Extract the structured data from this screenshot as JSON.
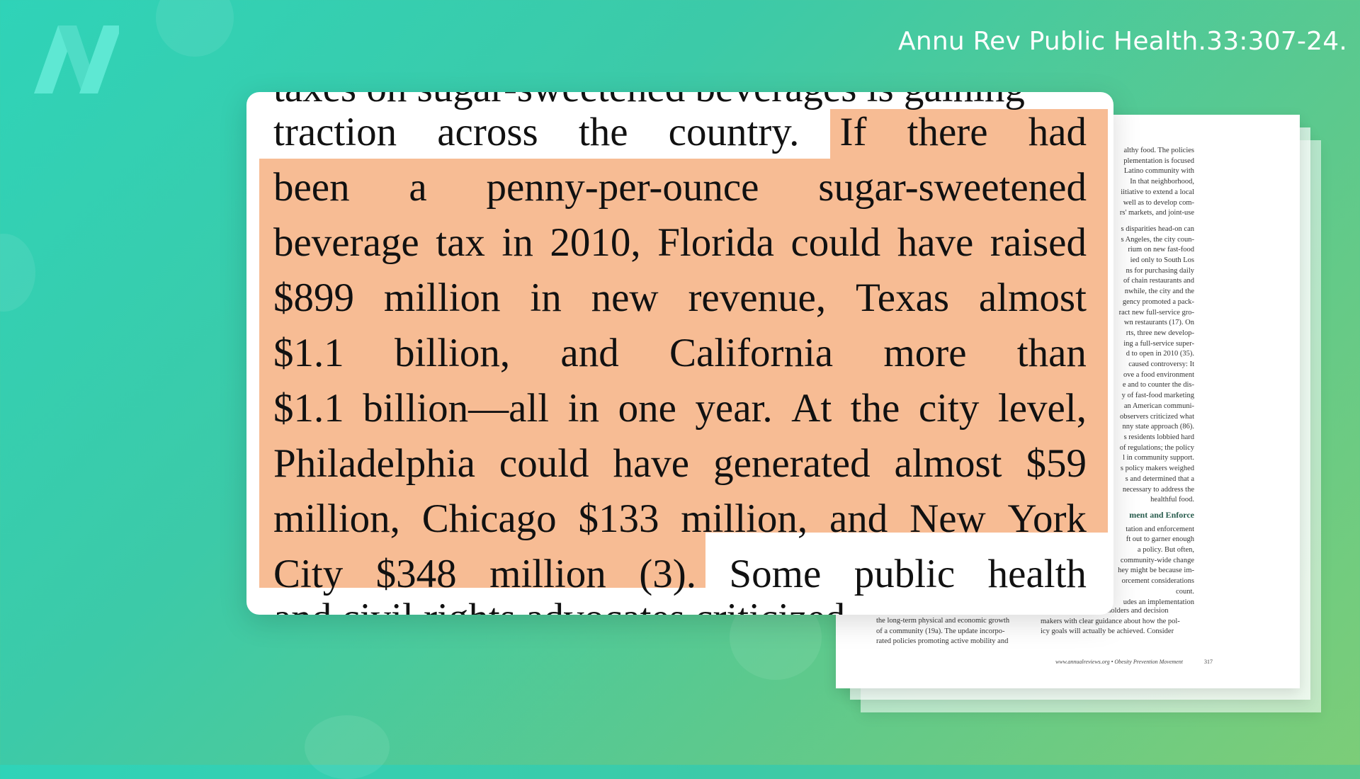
{
  "citation": "Annu Rev Public Health.33:307-24.",
  "logo": {
    "icon": "n-logo-icon",
    "color": "#5ee8d3"
  },
  "highlight_color": "#f7bc94",
  "zoom": {
    "top_cut_text": "taxes on sugar-sweetened beverages is gaining",
    "lines": [
      [
        "traction",
        "across",
        "the",
        "country.",
        "If",
        "there",
        "had"
      ],
      [
        "been",
        "a",
        "penny-per-ounce",
        "sugar-sweetened"
      ],
      [
        "beverage",
        "tax",
        "in",
        "2010,",
        "Florida",
        "could",
        "have",
        "raised"
      ],
      [
        "$899",
        "million",
        "in",
        "new",
        "revenue,",
        "Texas",
        "almost"
      ],
      [
        "$1.1",
        "billion,",
        "and",
        "California",
        "more",
        "than"
      ],
      [
        "$1.1",
        "billion—all",
        "in",
        "one",
        "year.",
        "At",
        "the",
        "city",
        "level,"
      ],
      [
        "Philadelphia",
        "could",
        "have",
        "generated",
        "almost",
        "$59"
      ],
      [
        "million,",
        "Chicago",
        "$133",
        "million,",
        "and",
        "New",
        "York"
      ],
      [
        "City",
        "$348",
        "million",
        "(3).",
        "Some",
        "public",
        "health"
      ]
    ],
    "bottom_cut_text": "and civil rights advocates criticized"
  },
  "background_page": {
    "right_col_para1": [
      "althy food. The policies",
      "plementation is focused",
      "Latino community with",
      "In that neighborhood,",
      "iitiative to extend a local",
      "well as to develop com-",
      "rs' markets, and joint-use"
    ],
    "right_col_para2": [
      "s disparities head-on can",
      "s Angeles, the city coun-",
      "rium on new fast-food",
      "ied only to South Los",
      "ns for purchasing daily",
      "of chain restaurants and",
      "nwhile, the city and the",
      "gency promoted a pack-",
      "ract new full-service gro-",
      "wn restaurants (17). On",
      "rts, three new develop-",
      "ing a full-service super-",
      "d to open in 2010 (35).",
      "caused controversy: It",
      "ove a food environment",
      "e and to counter the dis-",
      "y of fast-food marketing",
      "an American communi-",
      "observers criticized what",
      "nny state approach (86).",
      "s residents lobbied hard",
      "of regulations; the policy",
      "l in community support.",
      "s policy makers weighed",
      "s and determined that a",
      "necessary to address the",
      "healthful food."
    ],
    "heading": "ment and Enforce",
    "right_col_para3": [
      "tation and enforcement",
      "ft out to garner enough",
      "a policy. But often,",
      "community-wide change",
      "hey might be because im-",
      "orcement considerations",
      "count.",
      "udes an implementation"
    ],
    "bottom_left": [
      "the long-term physical and economic growth",
      "of a community (19a). The update incorpo-",
      "rated policies promoting active mobility and"
    ],
    "bottom_right": [
      "plan can provide stakeholders and decision",
      "makers with clear guidance about how the pol-",
      "icy goals will actually be achieved. Consider"
    ],
    "footer": "www.annualreviews.org • Obesity Prevention Movement",
    "page_number": "317"
  }
}
